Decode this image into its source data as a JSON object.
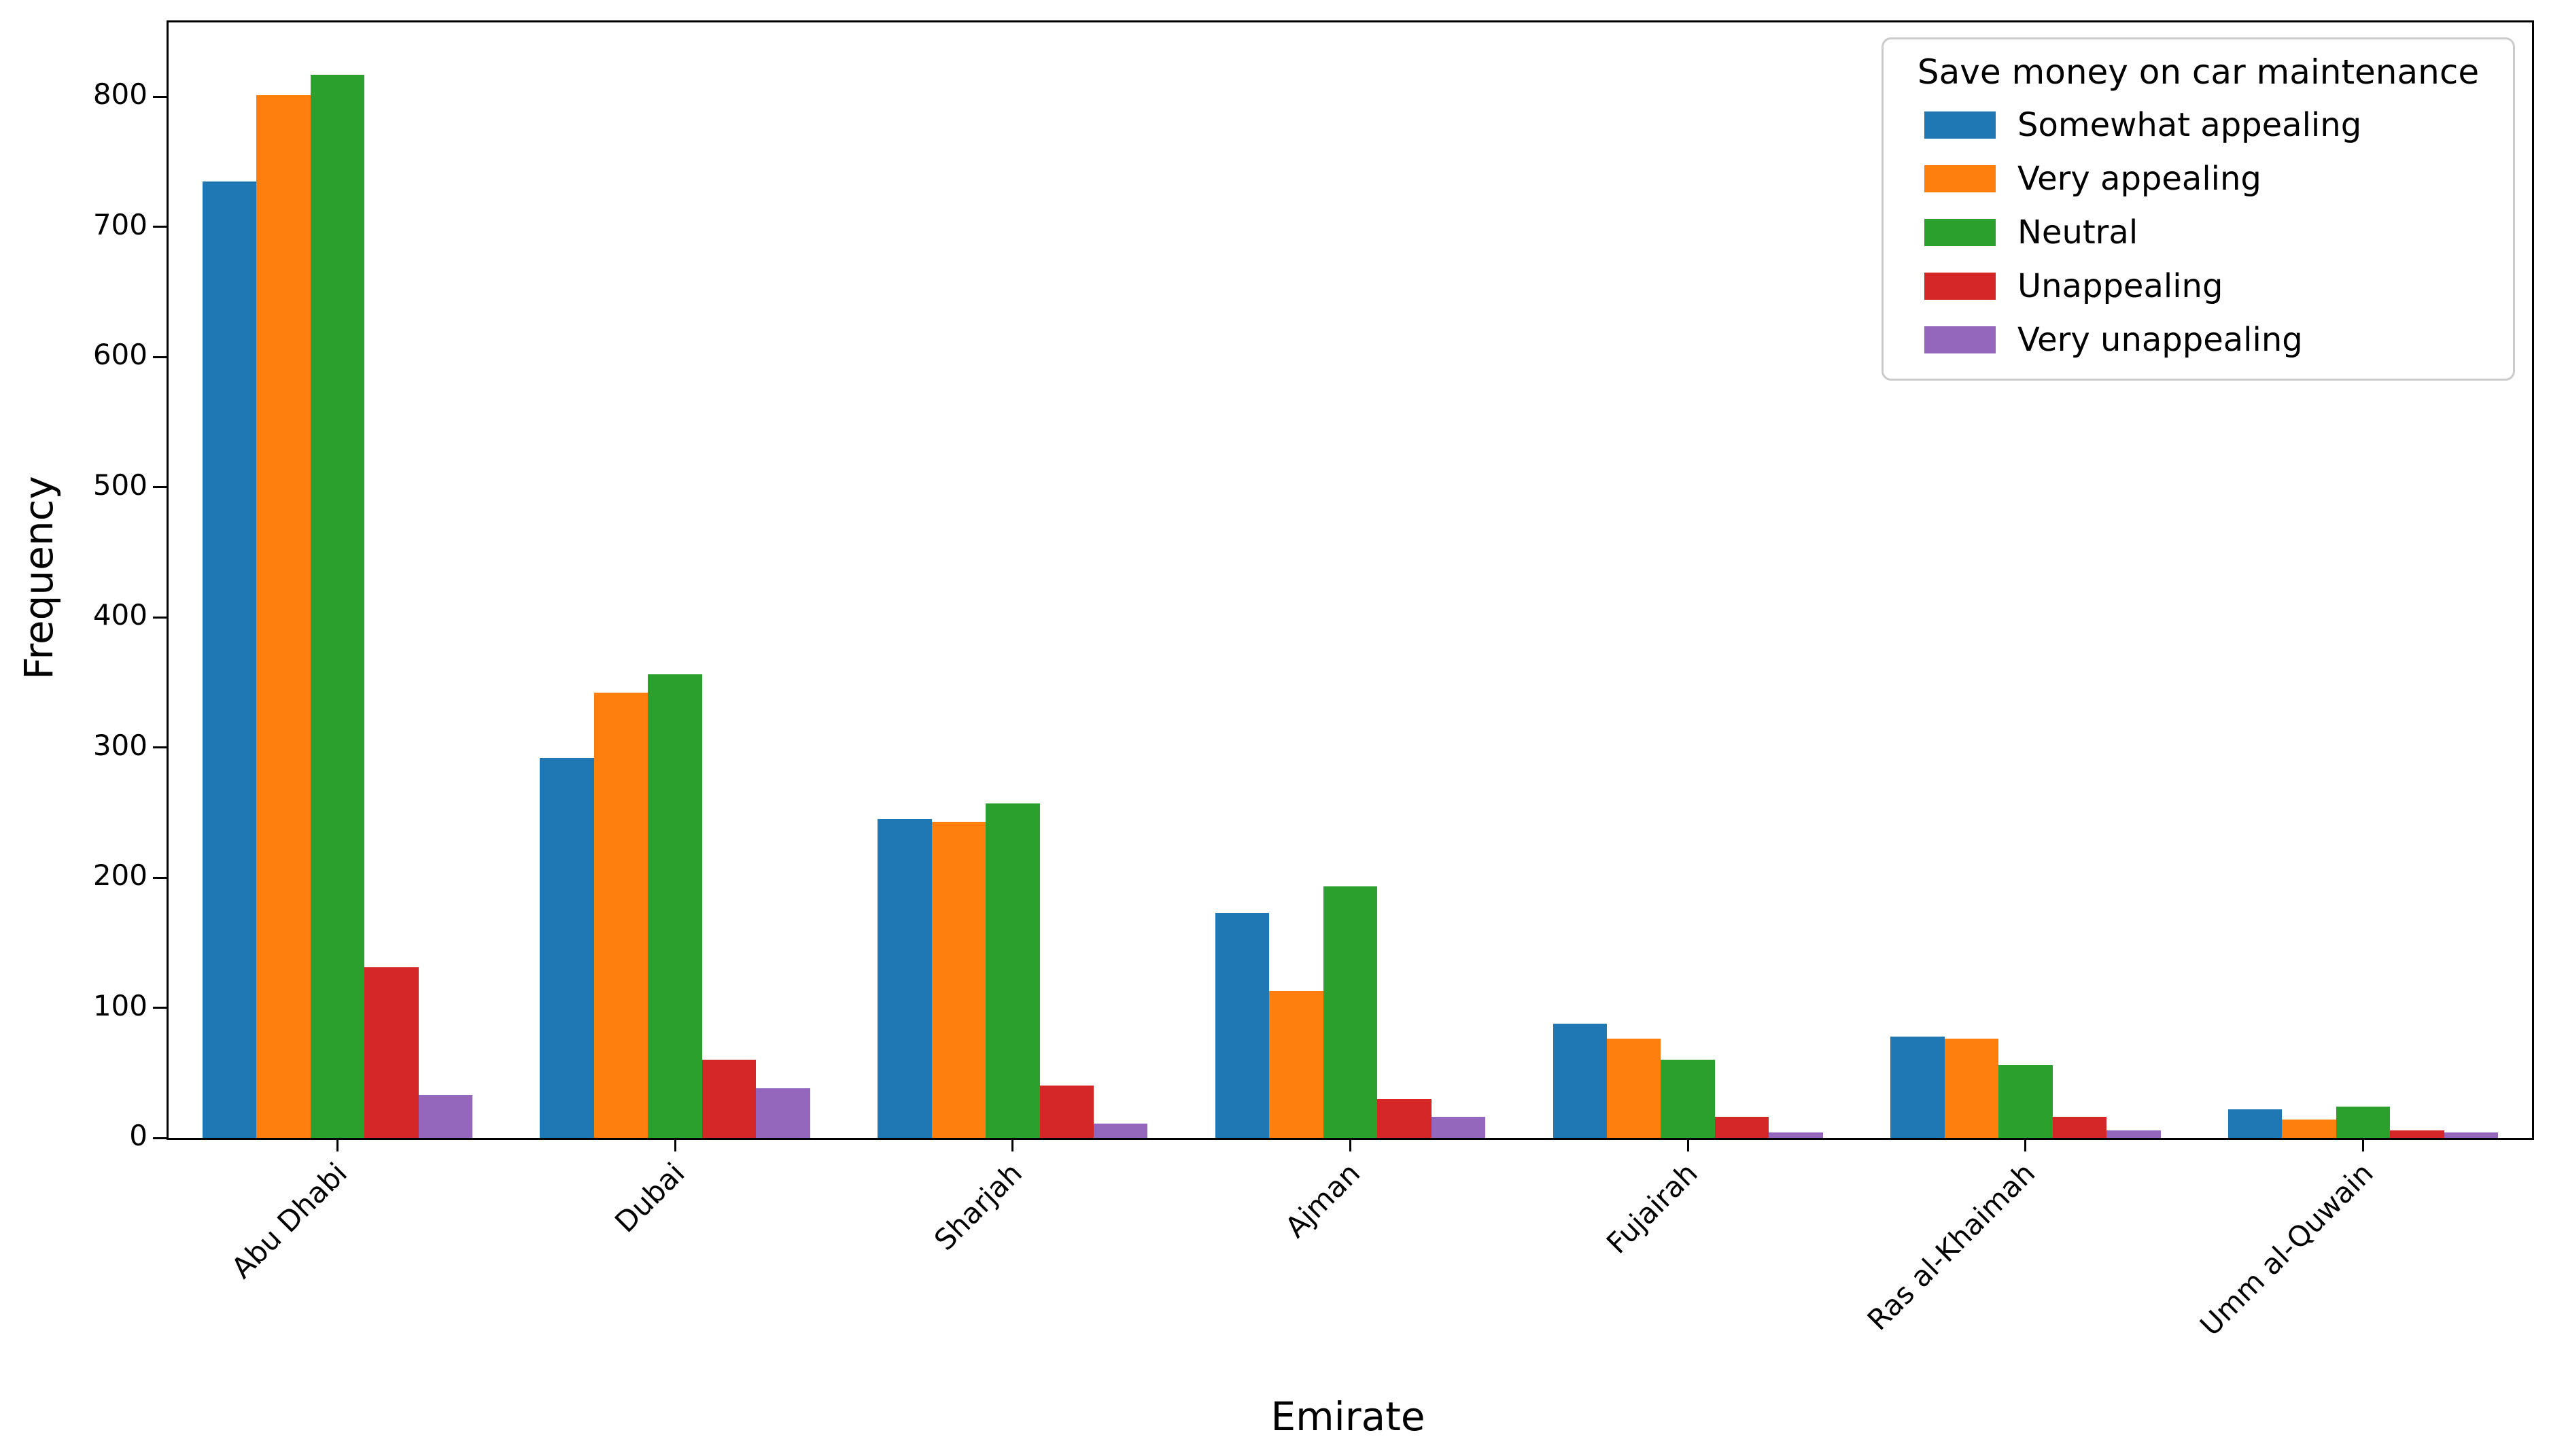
{
  "chart_data": {
    "type": "bar",
    "legend_title": "Save money on car maintenance",
    "xlabel": "Emirate",
    "ylabel": "Frequency",
    "categories": [
      "Abu Dhabi",
      "Dubai",
      "Sharjah",
      "Ajman",
      "Fujairah",
      "Ras al-Khaimah",
      "Umm al-Quwain"
    ],
    "series": [
      {
        "name": "Somewhat appealing",
        "color": "#1f77b4",
        "values": [
          735,
          292,
          245,
          173,
          88,
          78,
          22
        ]
      },
      {
        "name": "Very appealing",
        "color": "#ff7f0e",
        "values": [
          801,
          342,
          243,
          113,
          76,
          76,
          14
        ]
      },
      {
        "name": "Neutral",
        "color": "#2ca02c",
        "values": [
          817,
          356,
          257,
          193,
          60,
          56,
          24
        ]
      },
      {
        "name": "Unappealing",
        "color": "#d62728",
        "values": [
          131,
          60,
          40,
          30,
          16,
          16,
          6
        ]
      },
      {
        "name": "Very unappealing",
        "color": "#9467bd",
        "values": [
          33,
          38,
          11,
          16,
          4,
          6,
          4
        ]
      }
    ],
    "yticks": [
      0,
      100,
      200,
      300,
      400,
      500,
      600,
      700,
      800
    ],
    "ylim": [
      0,
      857
    ],
    "grid": false,
    "legend_position": "upper right",
    "bar_group_fraction": 0.8,
    "x_tick_rotation_deg": 45,
    "axis_color": "#000000",
    "legend_border_color": "#cbcbcb"
  }
}
